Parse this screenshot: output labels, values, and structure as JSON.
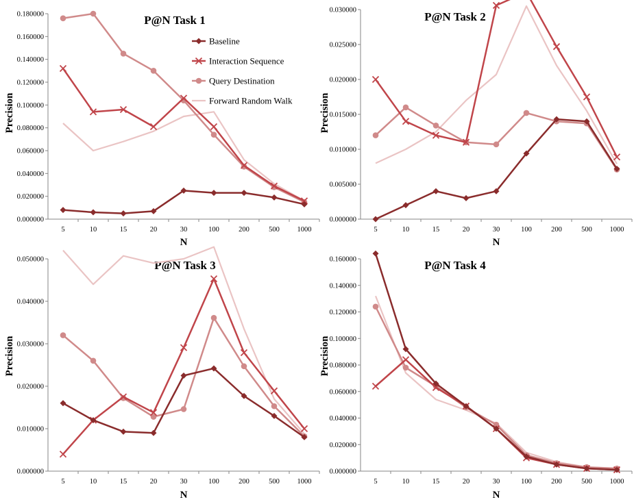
{
  "colors": {
    "baseline": "#8a2c2c",
    "interaction": "#c0454a",
    "query": "#d08a8a",
    "forward": "#eac4c4"
  },
  "chart_data": [
    {
      "type": "line",
      "title": "P@N Task 1",
      "xlabel": "N",
      "ylabel": "Precision",
      "categories": [
        "5",
        "10",
        "15",
        "20",
        "30",
        "100",
        "200",
        "500",
        "1000"
      ],
      "ylim": [
        0,
        0.18
      ],
      "yticks": [
        "0.000000",
        "0.020000",
        "0.040000",
        "0.060000",
        "0.080000",
        "0.100000",
        "0.120000",
        "0.140000",
        "0.160000",
        "0.180000"
      ],
      "legend": "top-right",
      "series": [
        {
          "name": "Baseline",
          "values": [
            0.008,
            0.006,
            0.005,
            0.007,
            0.025,
            0.023,
            0.023,
            0.019,
            0.013
          ]
        },
        {
          "name": "Interaction Sequence",
          "values": [
            0.132,
            0.094,
            0.096,
            0.081,
            0.106,
            0.081,
            0.047,
            0.029,
            0.016
          ]
        },
        {
          "name": "Query Destination",
          "values": [
            0.176,
            0.18,
            0.145,
            0.13,
            0.104,
            0.074,
            0.046,
            0.028,
            0.015
          ]
        },
        {
          "name": "Forward Random Walk",
          "values": [
            0.084,
            0.06,
            0.068,
            0.077,
            0.09,
            0.094,
            0.052,
            0.031,
            0.016
          ]
        }
      ]
    },
    {
      "type": "line",
      "title": "P@N Task 2",
      "xlabel": "N",
      "ylabel": "Precision",
      "categories": [
        "5",
        "10",
        "15",
        "20",
        "30",
        "100",
        "200",
        "500",
        "1000"
      ],
      "ylim": [
        0,
        0.03
      ],
      "yticks": [
        "0.000000",
        "0.005000",
        "0.010000",
        "0.015000",
        "0.020000",
        "0.025000",
        "0.030000"
      ],
      "series": [
        {
          "name": "Baseline",
          "values": [
            0.0,
            0.002,
            0.004,
            0.003,
            0.004,
            0.0094,
            0.0143,
            0.014,
            0.0072
          ]
        },
        {
          "name": "Interaction Sequence",
          "values": [
            0.02,
            0.014,
            0.012,
            0.011,
            0.0306,
            0.0325,
            0.0247,
            0.0175,
            0.0089
          ]
        },
        {
          "name": "Query Destination",
          "values": [
            0.012,
            0.016,
            0.0134,
            0.011,
            0.0107,
            0.0152,
            0.014,
            0.0137,
            0.0071
          ]
        },
        {
          "name": "Forward Random Walk",
          "values": [
            0.008,
            0.01,
            0.0125,
            0.017,
            0.0207,
            0.0305,
            0.022,
            0.0155,
            0.0079
          ]
        }
      ]
    },
    {
      "type": "line",
      "title": "P@N Task 3",
      "xlabel": "N",
      "ylabel": "Precision",
      "categories": [
        "5",
        "10",
        "15",
        "20",
        "30",
        "100",
        "200",
        "500",
        "1000"
      ],
      "ylim": [
        0,
        0.05
      ],
      "yticks": [
        "0.000000",
        "0.010000",
        "0.020000",
        "0.030000",
        "0.040000",
        "0.050000"
      ],
      "series": [
        {
          "name": "Baseline",
          "values": [
            0.016,
            0.012,
            0.0093,
            0.009,
            0.0225,
            0.0242,
            0.0177,
            0.013,
            0.008
          ]
        },
        {
          "name": "Interaction Sequence",
          "values": [
            0.004,
            0.012,
            0.0175,
            0.0138,
            0.0291,
            0.0453,
            0.0279,
            0.0189,
            0.01
          ]
        },
        {
          "name": "Query Destination",
          "values": [
            0.032,
            0.026,
            0.0172,
            0.0128,
            0.0146,
            0.0361,
            0.0247,
            0.0153,
            0.0082
          ]
        },
        {
          "name": "Forward Random Walk",
          "values": [
            0.052,
            0.044,
            0.0507,
            0.049,
            0.05,
            0.0528,
            0.0335,
            0.017,
            0.0088
          ]
        }
      ]
    },
    {
      "type": "line",
      "title": "P@N Task 4",
      "xlabel": "N",
      "ylabel": "Precision",
      "categories": [
        "5",
        "10",
        "15",
        "20",
        "30",
        "100",
        "200",
        "500",
        "1000"
      ],
      "ylim": [
        0,
        0.16
      ],
      "yticks": [
        "0.000000",
        "0.020000",
        "0.040000",
        "0.060000",
        "0.080000",
        "0.100000",
        "0.120000",
        "0.140000",
        "0.160000"
      ],
      "series": [
        {
          "name": "Baseline",
          "values": [
            0.164,
            0.092,
            0.066,
            0.049,
            0.032,
            0.011,
            0.005,
            0.002,
            0.001
          ]
        },
        {
          "name": "Interaction Sequence",
          "values": [
            0.064,
            0.084,
            0.063,
            0.049,
            0.032,
            0.01,
            0.005,
            0.002,
            0.001
          ]
        },
        {
          "name": "Query Destination",
          "values": [
            0.124,
            0.078,
            0.064,
            0.048,
            0.035,
            0.012,
            0.006,
            0.003,
            0.002
          ]
        },
        {
          "name": "Forward Random Walk",
          "values": [
            0.132,
            0.074,
            0.054,
            0.046,
            0.036,
            0.014,
            0.007,
            0.003,
            0.002
          ]
        }
      ]
    }
  ]
}
